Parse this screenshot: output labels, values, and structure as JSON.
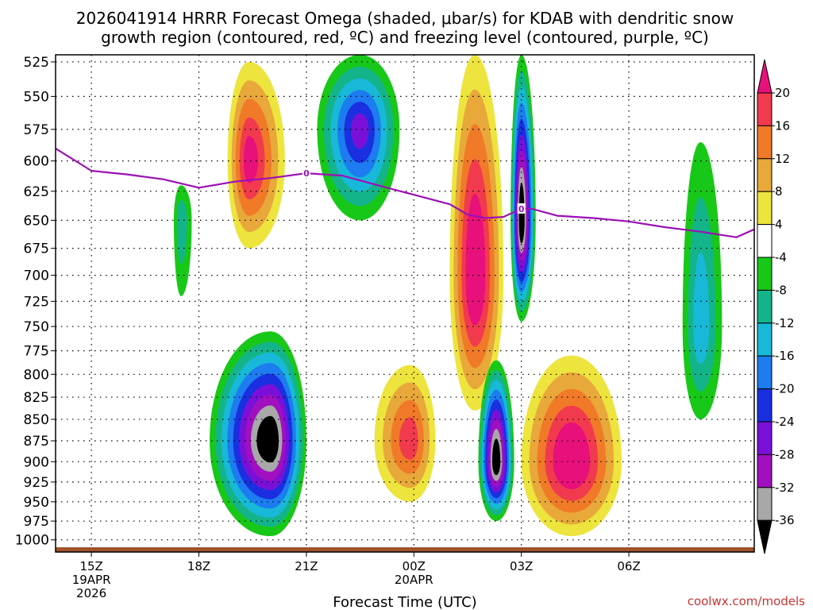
{
  "title_line1": "2026041914 HRRR Forecast Omega (shaded, μbar/s) for KDAB with dendritic snow",
  "title_line2": "growth region (contoured, red, ºC) and freezing level (contoured, purple, ºC)",
  "credit": "coolwx.com/models",
  "chart_data": {
    "type": "heatmap",
    "title": "2026041914 HRRR Forecast Omega (shaded, μbar/s) for KDAB with dendritic snow growth region (contoured, red, ºC) and freezing level (contoured, purple, ºC)",
    "xlabel": "Forecast Time (UTC)",
    "ylabel": "",
    "x_unit": "hours after 15Z 19APR2026",
    "xlim": [
      -1,
      18.5
    ],
    "ylim": [
      1010,
      520
    ],
    "y_scale": "log",
    "grid": true,
    "x_ticks": [
      {
        "x": 0,
        "label": "15Z",
        "sub1": "19APR",
        "sub2": "2026"
      },
      {
        "x": 3,
        "label": "18Z",
        "sub1": "",
        "sub2": ""
      },
      {
        "x": 6,
        "label": "21Z",
        "sub1": "",
        "sub2": ""
      },
      {
        "x": 9,
        "label": "00Z",
        "sub1": "20APR",
        "sub2": ""
      },
      {
        "x": 12,
        "label": "03Z",
        "sub1": "",
        "sub2": ""
      },
      {
        "x": 15,
        "label": "06Z",
        "sub1": "",
        "sub2": ""
      }
    ],
    "y_ticks": [
      525,
      550,
      575,
      600,
      625,
      650,
      675,
      700,
      725,
      750,
      775,
      800,
      825,
      850,
      875,
      900,
      925,
      950,
      975,
      1000
    ],
    "colorbar": {
      "ticks": [
        "20",
        "16",
        "12",
        "8",
        "4",
        "-4",
        "-8",
        "-12",
        "-16",
        "-20",
        "-24",
        "-28",
        "-32",
        "-36"
      ],
      "bins": [
        {
          "range": [
            20,
            24
          ],
          "color": "#e8107a"
        },
        {
          "range": [
            16,
            20
          ],
          "color": "#f23a4f"
        },
        {
          "range": [
            12,
            16
          ],
          "color": "#f07a28"
        },
        {
          "range": [
            8,
            12
          ],
          "color": "#e8a83a"
        },
        {
          "range": [
            4,
            8
          ],
          "color": "#ede43e"
        },
        {
          "range": [
            -4,
            4
          ],
          "color": "#ffffff"
        },
        {
          "range": [
            -8,
            -4
          ],
          "color": "#18c818"
        },
        {
          "range": [
            -12,
            -8
          ],
          "color": "#14b48a"
        },
        {
          "range": [
            -16,
            -12
          ],
          "color": "#18b8d8"
        },
        {
          "range": [
            -20,
            -16
          ],
          "color": "#1c7cf0"
        },
        {
          "range": [
            -24,
            -20
          ],
          "color": "#1a30e0"
        },
        {
          "range": [
            -28,
            -24
          ],
          "color": "#7a10d8"
        },
        {
          "range": [
            -32,
            -28
          ],
          "color": "#a010c0"
        },
        {
          "range": [
            -36,
            -32
          ],
          "color": "#a8a8a8"
        },
        {
          "range": [
            -40,
            -36
          ],
          "color": "#000000"
        }
      ]
    },
    "omega_features": [
      {
        "name": "descent-core-18z",
        "x": [
          3.8,
          4.4,
          5.4
        ],
        "p": [
          525,
          600,
          675
        ],
        "min": 20
      },
      {
        "name": "ascent-cell-green-17z",
        "x": [
          2.3,
          2.5,
          2.8
        ],
        "p": [
          620,
          650,
          720
        ],
        "min": -8
      },
      {
        "name": "ascent-core-20z",
        "x": [
          3.3,
          5.0,
          6.0
        ],
        "p": [
          755,
          875,
          995
        ],
        "min": -40
      },
      {
        "name": "ascent-upper-22z",
        "x": [
          6.3,
          7.5,
          8.6
        ],
        "p": [
          520,
          575,
          650
        ],
        "min": -24
      },
      {
        "name": "descent-cell-23z",
        "x": [
          7.9,
          8.9,
          9.6
        ],
        "p": [
          790,
          875,
          950
        ],
        "min": 16
      },
      {
        "name": "descent-column-01z",
        "x": [
          10.0,
          10.7,
          11.5
        ],
        "p": [
          520,
          700,
          840
        ],
        "min": 24
      },
      {
        "name": "ascent-core-02z",
        "x": [
          10.8,
          11.3,
          11.8
        ],
        "p": [
          785,
          900,
          975
        ],
        "min": -40
      },
      {
        "name": "ascent-column-03z",
        "x": [
          11.7,
          12.0,
          12.4
        ],
        "p": [
          520,
          650,
          745
        ],
        "min": -40
      },
      {
        "name": "descent-core-04z",
        "x": [
          12.0,
          13.4,
          14.8
        ],
        "p": [
          780,
          900,
          995
        ],
        "min": 24
      },
      {
        "name": "ascent-cells-07z",
        "x": [
          16.5,
          17.0,
          17.6
        ],
        "p": [
          585,
          750,
          850
        ],
        "min": -12
      }
    ],
    "freezing_level": {
      "label": "0",
      "x": [
        -1.0,
        0.0,
        1.0,
        2.0,
        3.0,
        4.0,
        5.0,
        6.0,
        7.0,
        8.0,
        9.0,
        10.0,
        10.5,
        11.0,
        11.5,
        12.0,
        12.3,
        13.0,
        14.0,
        15.0,
        16.0,
        17.0,
        18.0,
        18.5
      ],
      "p": [
        590,
        608,
        611,
        615,
        622,
        617,
        614,
        610,
        612,
        620,
        628,
        636,
        645,
        648,
        647,
        640,
        640,
        646,
        648,
        651,
        656,
        660,
        665,
        658
      ]
    }
  }
}
